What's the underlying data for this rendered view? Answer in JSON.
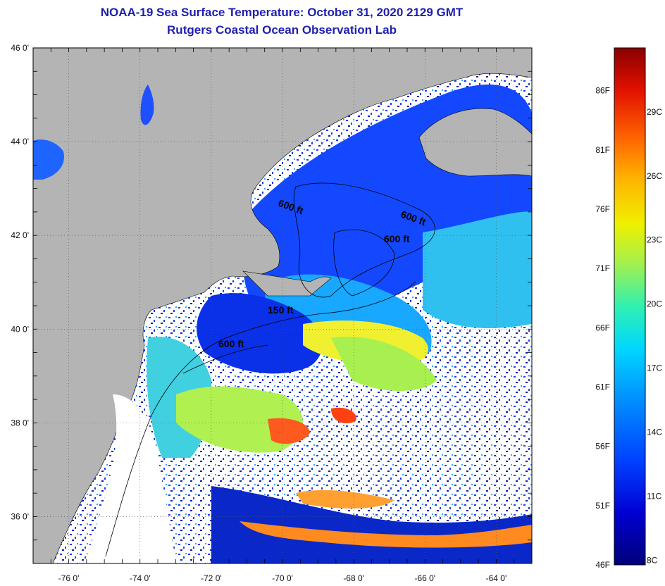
{
  "header": {
    "title": "NOAA-19 Sea Surface Temperature:  October 31, 2020 2129 GMT",
    "subtitle": "Rutgers Coastal Ocean Observation Lab"
  },
  "map": {
    "lat_labels": [
      "46 0'",
      "44 0'",
      "42 0'",
      "40 0'",
      "38 0'",
      "36 0'"
    ],
    "lat_values": [
      46,
      44,
      42,
      40,
      38,
      36
    ],
    "lon_labels": [
      "-76 0'",
      "-74 0'",
      "-72 0'",
      "-70 0'",
      "-68 0'",
      "-66 0'",
      "-64 0'"
    ],
    "lon_values": [
      -76,
      -74,
      -72,
      -70,
      -68,
      -66,
      -64
    ],
    "lat_range": [
      35,
      46
    ],
    "lon_range": [
      -77,
      -63
    ],
    "land_color": "#b4b4b4",
    "cloud_color": "#ffffff",
    "contour_labels": [
      "600 ft",
      "600 ft",
      "600 ft",
      "150 ft",
      "600 ft"
    ]
  },
  "colorbar": {
    "fahrenheit_labels": [
      "86F",
      "81F",
      "76F",
      "71F",
      "66F",
      "61F",
      "56F",
      "51F",
      "46F"
    ],
    "celsius_labels": [
      "29C",
      "26C",
      "23C",
      "20C",
      "17C",
      "14C",
      "11C",
      "8C"
    ],
    "colors": [
      "#00007a",
      "#0000d2",
      "#0040ff",
      "#0090ff",
      "#00d8ff",
      "#30f0b0",
      "#a0f050",
      "#f0f000",
      "#ffb000",
      "#ff6000",
      "#e01000",
      "#8a0000"
    ]
  }
}
